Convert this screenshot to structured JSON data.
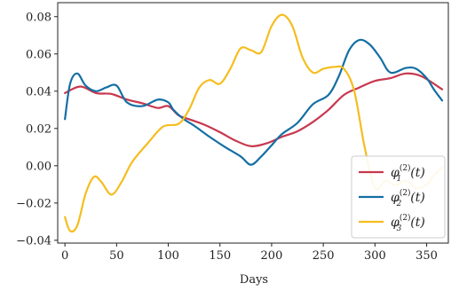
{
  "chart_data": {
    "type": "line",
    "title": "",
    "xlabel": "Days",
    "ylabel": "",
    "xlim": [
      -7,
      371
    ],
    "ylim": [
      -0.0415,
      0.0875
    ],
    "xticks": [
      0,
      50,
      100,
      150,
      200,
      250,
      300,
      350
    ],
    "xtick_labels": [
      "0",
      "50",
      "100",
      "150",
      "200",
      "250",
      "300",
      "350"
    ],
    "yticks": [
      -0.04,
      -0.02,
      0.0,
      0.02,
      0.04,
      0.06,
      0.08
    ],
    "ytick_labels": [
      "−0.04",
      "−0.02",
      "0.00",
      "0.02",
      "0.04",
      "0.06",
      "0.08"
    ],
    "grid": false,
    "legend_position": "lower-right",
    "series": [
      {
        "name": "φ",
        "name_sup": "(2)",
        "name_sub": "1",
        "name_suffix": "(t)",
        "color": "#c8384e",
        "x": [
          0,
          15,
          30,
          45,
          60,
          75,
          90,
          100,
          110,
          120,
          135,
          150,
          165,
          180,
          195,
          210,
          225,
          240,
          255,
          270,
          285,
          300,
          315,
          330,
          345,
          365
        ],
        "y": [
          0.039,
          0.0425,
          0.039,
          0.0385,
          0.0355,
          0.0335,
          0.031,
          0.032,
          0.027,
          0.025,
          0.022,
          0.018,
          0.0135,
          0.0105,
          0.012,
          0.0155,
          0.0185,
          0.0235,
          0.03,
          0.038,
          0.042,
          0.0455,
          0.047,
          0.0495,
          0.048,
          0.041
        ]
      },
      {
        "name": "φ",
        "name_sup": "(2)",
        "name_sub": "2",
        "name_suffix": "(t)",
        "color": "#146fa3",
        "x": [
          0,
          5,
          12,
          20,
          30,
          40,
          50,
          60,
          75,
          90,
          100,
          105,
          115,
          125,
          140,
          155,
          170,
          180,
          190,
          200,
          210,
          225,
          240,
          255,
          265,
          275,
          285,
          295,
          305,
          315,
          330,
          340,
          350,
          357,
          365
        ],
        "y": [
          0.025,
          0.044,
          0.0495,
          0.043,
          0.04,
          0.042,
          0.043,
          0.034,
          0.032,
          0.0355,
          0.034,
          0.03,
          0.025,
          0.0215,
          0.0155,
          0.01,
          0.005,
          0.0005,
          0.005,
          0.011,
          0.017,
          0.023,
          0.033,
          0.038,
          0.048,
          0.062,
          0.0675,
          0.065,
          0.058,
          0.05,
          0.0525,
          0.052,
          0.047,
          0.041,
          0.035
        ]
      },
      {
        "name": "φ",
        "name_sup": "(2)",
        "name_sub": "3",
        "name_suffix": "(t)",
        "color": "#f5bd1f",
        "x": [
          0,
          5,
          12,
          20,
          28,
          35,
          45,
          55,
          65,
          80,
          95,
          110,
          120,
          130,
          140,
          150,
          160,
          170,
          180,
          190,
          200,
          210,
          220,
          230,
          240,
          250,
          260,
          270,
          280,
          290,
          300,
          310,
          320,
          330,
          340,
          350,
          357,
          365
        ],
        "y": [
          -0.0275,
          -0.035,
          -0.032,
          -0.015,
          -0.006,
          -0.0085,
          -0.0155,
          -0.0085,
          0.002,
          0.012,
          0.021,
          0.0225,
          0.03,
          0.042,
          0.046,
          0.044,
          0.052,
          0.063,
          0.062,
          0.061,
          0.075,
          0.081,
          0.075,
          0.058,
          0.05,
          0.052,
          0.053,
          0.052,
          0.04,
          0.01,
          -0.012,
          -0.008,
          -0.0105,
          -0.008,
          -0.012,
          -0.01,
          -0.005,
          -0.001
        ]
      }
    ]
  }
}
